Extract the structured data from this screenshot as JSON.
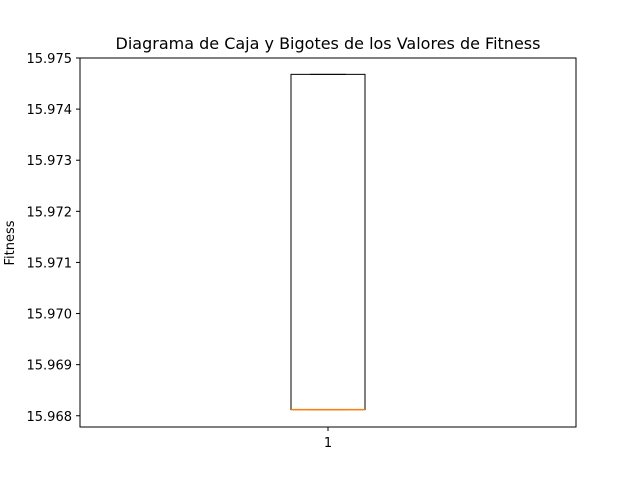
{
  "chart_data": {
    "type": "box",
    "title": "Diagrama de Caja y Bigotes de los Valores de Fitness",
    "xlabel": "",
    "ylabel": "Fitness",
    "categories": [
      "1"
    ],
    "boxes": [
      {
        "category": "1",
        "whisker_low": 15.96812,
        "q1": 15.96812,
        "median": 15.96812,
        "q3": 15.97468,
        "whisker_high": 15.97468
      }
    ],
    "ylim": [
      15.96778,
      15.975
    ],
    "yticks": [
      "15.968",
      "15.969",
      "15.970",
      "15.971",
      "15.972",
      "15.973",
      "15.974",
      "15.975"
    ],
    "ytick_values": [
      15.968,
      15.969,
      15.97,
      15.971,
      15.972,
      15.973,
      15.974,
      15.975
    ],
    "grid": false,
    "colors": {
      "box": "#000000",
      "median": "#ff7f0e",
      "background": "#ffffff"
    }
  }
}
